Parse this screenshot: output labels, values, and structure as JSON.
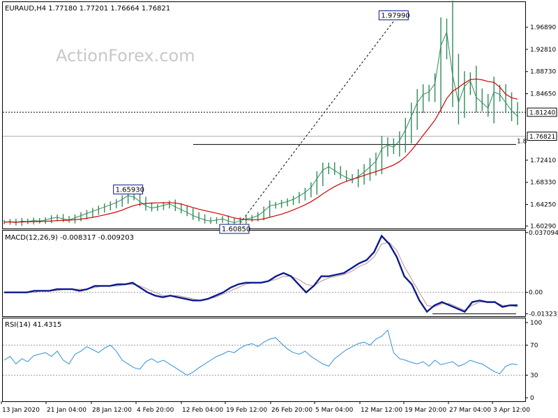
{
  "watermark": "ActionForex.com",
  "colors": {
    "price": "#2e8b57",
    "ma": "#d00000",
    "macd": "#0a1a8c",
    "signal": "#c09090",
    "rsi": "#2f8fd6",
    "frame": "#000000"
  },
  "chart_data": [
    {
      "type": "line",
      "panel": "price",
      "header": "EURAUD,H4  1.77180 1.77201 1.76664 1.76821",
      "ylim": [
        1.5983,
        2.0152
      ],
      "yticks": [
        "1.96890",
        "1.92810",
        "1.88730",
        "1.84650",
        "1.72410",
        "1.68330",
        "1.64250",
        "1.60290"
      ],
      "ytick_values": [
        1.9689,
        1.9281,
        1.8873,
        1.8465,
        1.7241,
        1.6833,
        1.6425,
        1.6029
      ],
      "xticks": [
        "13 Jan 2020",
        "21 Jan 04:00",
        "28 Jan 12:00",
        "4 Feb 20:00",
        "12 Feb 04:00",
        "19 Feb 12:00",
        "26 Feb 20:00",
        "5 Mar 04:00",
        "12 Mar 12:00",
        "19 Mar 20:00",
        "27 Mar 04:00",
        "3 Apr 12:00"
      ],
      "current_price": "1.76821",
      "current_value": 1.76821,
      "hline_label": "1.81240",
      "hline_value": 1.8124,
      "support_value": 1.7531,
      "support_label": "1.8",
      "annotations": [
        {
          "text": "1.97990",
          "x": 66,
          "y": 1.9799
        },
        {
          "text": "1.65930",
          "x": 21,
          "y": 1.6593
        },
        {
          "text": "1.60850",
          "x": 39,
          "y": 1.6085
        }
      ],
      "trendline": [
        [
          40,
          1.6085
        ],
        [
          66,
          1.9799
        ]
      ],
      "series": [
        {
          "key": "close",
          "x": [
            0,
            1,
            2,
            3,
            4,
            5,
            6,
            7,
            8,
            9,
            10,
            11,
            12,
            13,
            14,
            15,
            16,
            17,
            18,
            19,
            20,
            21,
            22,
            23,
            24,
            25,
            26,
            27,
            28,
            29,
            30,
            31,
            32,
            33,
            34,
            35,
            36,
            37,
            38,
            39,
            40,
            41,
            42,
            43,
            44,
            45,
            46,
            47,
            48,
            49,
            50,
            51,
            52,
            53,
            54,
            55,
            56,
            57,
            58,
            59,
            60,
            61,
            62,
            63,
            64,
            65,
            66,
            67,
            68,
            69,
            70,
            71,
            72,
            73,
            74,
            75,
            76,
            77,
            78,
            79,
            80,
            81,
            82,
            83,
            84,
            85,
            86,
            87
          ],
          "y": [
            1.61,
            1.611,
            1.609,
            1.612,
            1.611,
            1.613,
            1.612,
            1.614,
            1.617,
            1.619,
            1.616,
            1.614,
            1.618,
            1.622,
            1.626,
            1.63,
            1.634,
            1.638,
            1.642,
            1.646,
            1.652,
            1.659,
            1.656,
            1.648,
            1.64,
            1.636,
            1.638,
            1.641,
            1.644,
            1.638,
            1.633,
            1.628,
            1.622,
            1.618,
            1.614,
            1.612,
            1.614,
            1.616,
            1.612,
            1.609,
            1.613,
            1.616,
            1.618,
            1.622,
            1.63,
            1.64,
            1.642,
            1.645,
            1.648,
            1.652,
            1.658,
            1.665,
            1.674,
            1.69,
            1.706,
            1.712,
            1.705,
            1.698,
            1.692,
            1.688,
            1.694,
            1.702,
            1.712,
            1.722,
            1.745,
            1.752,
            1.748,
            1.76,
            1.78,
            1.805,
            1.83,
            1.845,
            1.85,
            1.865,
            1.935,
            1.96,
            1.88,
            1.83,
            1.86,
            1.87,
            1.84,
            1.83,
            1.82,
            1.85,
            1.845,
            1.83,
            1.815,
            1.805
          ]
        }
      ]
    },
    {
      "type": "line",
      "panel": "macd",
      "header": "MACD(12,26,9) -0.008317 -0.009203",
      "ylim": [
        -0.0148,
        0.0383
      ],
      "yticks": [
        "0.037094",
        "0.00",
        "-0.013231"
      ],
      "ytick_values": [
        0.037094,
        0.0,
        -0.013231
      ],
      "series": [
        {
          "key": "macd",
          "y": [
            0.0,
            0.0,
            0.0,
            0.0,
            0.001,
            0.001,
            0.001,
            0.002,
            0.002,
            0.002,
            0.001,
            0.002,
            0.004,
            0.004,
            0.004,
            0.005,
            0.005,
            0.006,
            0.003,
            0.0,
            -0.002,
            -0.003,
            -0.002,
            -0.003,
            -0.004,
            -0.005,
            -0.005,
            -0.004,
            -0.002,
            0.0,
            0.003,
            0.005,
            0.006,
            0.006,
            0.006,
            0.007,
            0.01,
            0.012,
            0.01,
            0.005,
            0.0,
            0.004,
            0.01,
            0.01,
            0.011,
            0.012,
            0.015,
            0.018,
            0.02,
            0.025,
            0.035,
            0.03,
            0.022,
            0.01,
            0.005,
            -0.005,
            -0.012,
            -0.008,
            -0.006,
            -0.008,
            -0.01,
            -0.012,
            -0.006,
            -0.005,
            -0.006,
            -0.006,
            -0.009,
            -0.008,
            -0.008
          ]
        },
        {
          "key": "signal",
          "y": [
            0.0,
            0.0,
            0.0,
            0.0,
            0.0,
            0.001,
            0.001,
            0.001,
            0.002,
            0.002,
            0.002,
            0.002,
            0.003,
            0.004,
            0.004,
            0.004,
            0.005,
            0.005,
            0.004,
            0.002,
            0.0,
            -0.002,
            -0.002,
            -0.002,
            -0.003,
            -0.004,
            -0.005,
            -0.004,
            -0.003,
            -0.001,
            0.001,
            0.003,
            0.005,
            0.006,
            0.006,
            0.007,
            0.008,
            0.01,
            0.01,
            0.008,
            0.005,
            0.004,
            0.007,
            0.009,
            0.01,
            0.011,
            0.013,
            0.016,
            0.018,
            0.022,
            0.03,
            0.031,
            0.026,
            0.016,
            0.008,
            0.0,
            -0.008,
            -0.009,
            -0.007,
            -0.007,
            -0.009,
            -0.011,
            -0.008,
            -0.006,
            -0.006,
            -0.006,
            -0.008,
            -0.008,
            -0.009
          ]
        }
      ],
      "zero_line": 0.0,
      "lower_level": -0.013231
    },
    {
      "type": "line",
      "panel": "rsi",
      "header": "RSI(14) 41.4315",
      "ylim": [
        0,
        100
      ],
      "yticks": [
        "100",
        "70",
        "30",
        "0"
      ],
      "ytick_values": [
        100,
        70,
        30,
        0
      ],
      "levels": [
        70,
        30
      ],
      "series": [
        {
          "key": "rsi",
          "y": [
            50,
            55,
            45,
            52,
            48,
            56,
            58,
            60,
            55,
            62,
            50,
            45,
            58,
            62,
            68,
            64,
            60,
            66,
            70,
            62,
            50,
            45,
            40,
            38,
            48,
            52,
            47,
            50,
            45,
            40,
            35,
            30,
            34,
            40,
            45,
            50,
            55,
            58,
            62,
            60,
            66,
            70,
            72,
            68,
            74,
            78,
            80,
            72,
            65,
            60,
            58,
            62,
            55,
            50,
            45,
            42,
            52,
            58,
            64,
            68,
            72,
            74,
            70,
            78,
            82,
            90,
            60,
            52,
            50,
            47,
            45,
            48,
            42,
            50,
            44,
            46,
            48,
            42,
            45,
            50,
            47,
            45,
            40,
            35,
            32,
            42,
            45,
            44
          ]
        }
      ]
    }
  ]
}
